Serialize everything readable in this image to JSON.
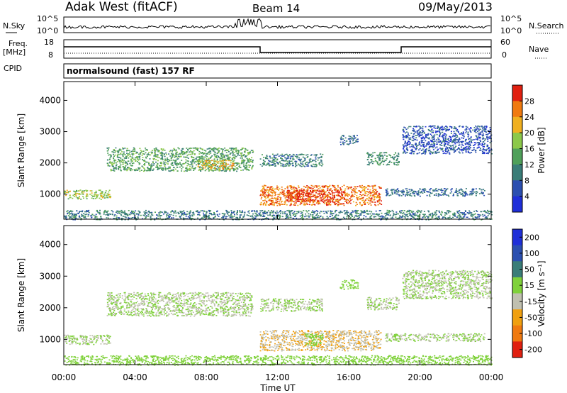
{
  "header": {
    "title": "Adak West (fitACF)",
    "beam": "Beam 14",
    "date": "09/May/2013"
  },
  "noise_panel": {
    "left_label": "N.Sky",
    "left_ticks": [
      "10^5",
      "10^0"
    ],
    "right_ticks": [
      "10^5",
      "10^0"
    ],
    "right_label": "N.Search"
  },
  "freq_panel": {
    "left_label_1": "Freq.",
    "left_label_2": "[MHz]",
    "left_ticks": [
      "18",
      "8"
    ],
    "right_ticks": [
      "60",
      "0"
    ],
    "right_label": "Nave"
  },
  "cpid": {
    "label": "CPID",
    "mode": "normalsound (fast) 157 RF"
  },
  "colors": {
    "power_scale": [
      "#1f2fd8",
      "#2b4fb0",
      "#3a7d78",
      "#4fa05a",
      "#8cc84a",
      "#f0b020",
      "#f07a10",
      "#e02010"
    ],
    "velocity_scale": [
      "#1f2fd8",
      "#2b4fb0",
      "#3a7d78",
      "#7fd13a",
      "#c0c0b0",
      "#f0a010",
      "#f07a10",
      "#e02010"
    ]
  },
  "chart_data": [
    {
      "type": "heatmap",
      "title": "",
      "xlabel": "",
      "ylabel": "Slant Range [km]",
      "x_ticks": [
        "00:00",
        "04:00",
        "08:00",
        "12:00",
        "16:00",
        "20:00",
        "00:00"
      ],
      "y_ticks": [
        "1000",
        "2000",
        "3000",
        "4000"
      ],
      "xlim": [
        0,
        24
      ],
      "ylim": [
        200,
        4600
      ],
      "colorbar": {
        "label": "Power [dB]",
        "ticks": [
          "4",
          "8",
          "12",
          "16",
          "20",
          "24",
          "28"
        ],
        "range": [
          0,
          32
        ]
      },
      "features": [
        {
          "t": [
            0.0,
            2.6
          ],
          "range": [
            850,
            1150
          ],
          "value": 18
        },
        {
          "t": [
            2.4,
            10.6
          ],
          "range": [
            1750,
            2500
          ],
          "value": 14
        },
        {
          "t": [
            7.5,
            9.5
          ],
          "range": [
            1800,
            2100
          ],
          "value": 22
        },
        {
          "t": [
            11.0,
            17.8
          ],
          "range": [
            650,
            1300
          ],
          "value": 26
        },
        {
          "t": [
            12.5,
            15.5
          ],
          "range": [
            750,
            1150
          ],
          "value": 30
        },
        {
          "t": [
            11.0,
            14.5
          ],
          "range": [
            1900,
            2300
          ],
          "value": 10
        },
        {
          "t": [
            15.5,
            16.5
          ],
          "range": [
            2600,
            2900
          ],
          "value": 8
        },
        {
          "t": [
            17.0,
            18.8
          ],
          "range": [
            1950,
            2350
          ],
          "value": 12
        },
        {
          "t": [
            18.0,
            23.6
          ],
          "range": [
            950,
            1200
          ],
          "value": 8
        },
        {
          "t": [
            19.0,
            24.0
          ],
          "range": [
            2300,
            3200
          ],
          "value": 6
        },
        {
          "t": [
            0.0,
            24.0
          ],
          "range": [
            200,
            500
          ],
          "value": 10
        }
      ]
    },
    {
      "type": "heatmap",
      "title": "",
      "xlabel": "Time UT",
      "ylabel": "Slant Range [km]",
      "x_ticks": [
        "00:00",
        "04:00",
        "08:00",
        "12:00",
        "16:00",
        "20:00",
        "00:00"
      ],
      "y_ticks": [
        "1000",
        "2000",
        "3000",
        "4000"
      ],
      "xlim": [
        0,
        24
      ],
      "ylim": [
        200,
        4600
      ],
      "colorbar": {
        "label": "Velocity [m s⁻¹]",
        "ticks": [
          "200",
          "100",
          "50",
          "15",
          "-15",
          "-50",
          "-100",
          "-200"
        ],
        "range": [
          -250,
          250
        ]
      },
      "features": [
        {
          "t": [
            0.0,
            2.6
          ],
          "range": [
            850,
            1150
          ],
          "value": 0
        },
        {
          "t": [
            2.4,
            10.6
          ],
          "range": [
            1750,
            2500
          ],
          "value": 0
        },
        {
          "t": [
            11.0,
            17.8
          ],
          "range": [
            650,
            1300
          ],
          "value": -60
        },
        {
          "t": [
            13.5,
            14.5
          ],
          "range": [
            800,
            1200
          ],
          "value": 40
        },
        {
          "t": [
            11.0,
            14.5
          ],
          "range": [
            1900,
            2300
          ],
          "value": 0
        },
        {
          "t": [
            15.5,
            16.5
          ],
          "range": [
            2600,
            2900
          ],
          "value": 30
        },
        {
          "t": [
            17.0,
            18.8
          ],
          "range": [
            1950,
            2350
          ],
          "value": 0
        },
        {
          "t": [
            18.0,
            23.6
          ],
          "range": [
            950,
            1200
          ],
          "value": 0
        },
        {
          "t": [
            19.0,
            24.0
          ],
          "range": [
            2300,
            3200
          ],
          "value": 0
        },
        {
          "t": [
            0.0,
            24.0
          ],
          "range": [
            200,
            500
          ],
          "value": 30
        }
      ]
    }
  ]
}
